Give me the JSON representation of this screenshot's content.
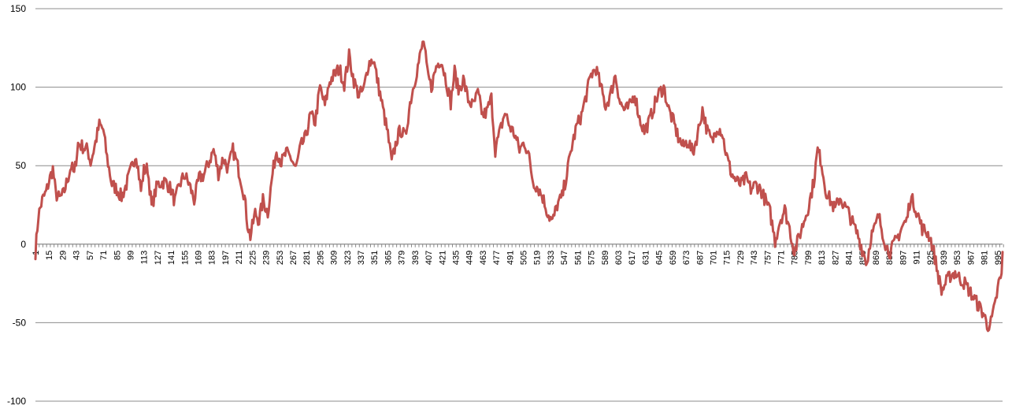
{
  "chart_data": {
    "type": "line",
    "title": "",
    "xlabel": "",
    "ylabel": "",
    "ylim": [
      -100,
      150
    ],
    "xlim": [
      1,
      1000
    ],
    "yticks": [
      -100,
      -50,
      0,
      50,
      100,
      150
    ],
    "xtick_start": 1,
    "xtick_step": 14,
    "xtick_count": 72,
    "grid": "horizontal",
    "legend": "none",
    "line_color": "#c0504d",
    "series": [
      {
        "keypoints": [
          [
            1,
            -5
          ],
          [
            4,
            18
          ],
          [
            8,
            28
          ],
          [
            12,
            33
          ],
          [
            15,
            40
          ],
          [
            19,
            48
          ],
          [
            22,
            32
          ],
          [
            26,
            29
          ],
          [
            30,
            32
          ],
          [
            34,
            41
          ],
          [
            38,
            50
          ],
          [
            41,
            44
          ],
          [
            45,
            64
          ],
          [
            50,
            62
          ],
          [
            55,
            60
          ],
          [
            58,
            52
          ],
          [
            62,
            62
          ],
          [
            67,
            76
          ],
          [
            71,
            73
          ],
          [
            75,
            55
          ],
          [
            80,
            38
          ],
          [
            85,
            35
          ],
          [
            90,
            30
          ],
          [
            95,
            38
          ],
          [
            100,
            48
          ],
          [
            105,
            58
          ],
          [
            110,
            34
          ],
          [
            113,
            47
          ],
          [
            117,
            48
          ],
          [
            121,
            24
          ],
          [
            127,
            38
          ],
          [
            135,
            40
          ],
          [
            141,
            35
          ],
          [
            145,
            27
          ],
          [
            150,
            38
          ],
          [
            155,
            44
          ],
          [
            160,
            38
          ],
          [
            165,
            28
          ],
          [
            170,
            42
          ],
          [
            175,
            44
          ],
          [
            180,
            52
          ],
          [
            185,
            60
          ],
          [
            190,
            45
          ],
          [
            195,
            55
          ],
          [
            200,
            48
          ],
          [
            205,
            60
          ],
          [
            209,
            52
          ],
          [
            213,
            42
          ],
          [
            217,
            30
          ],
          [
            220,
            13
          ],
          [
            223,
            5
          ],
          [
            228,
            20
          ],
          [
            232,
            15
          ],
          [
            236,
            28
          ],
          [
            241,
            20
          ],
          [
            246,
            45
          ],
          [
            250,
            60
          ],
          [
            255,
            52
          ],
          [
            260,
            58
          ],
          [
            265,
            55
          ],
          [
            270,
            48
          ],
          [
            275,
            62
          ],
          [
            280,
            68
          ],
          [
            285,
            82
          ],
          [
            290,
            78
          ],
          [
            295,
            100
          ],
          [
            300,
            88
          ],
          [
            305,
            104
          ],
          [
            310,
            108
          ],
          [
            315,
            112
          ],
          [
            320,
            102
          ],
          [
            325,
            120
          ],
          [
            330,
            104
          ],
          [
            335,
            95
          ],
          [
            340,
            98
          ],
          [
            345,
            115
          ],
          [
            350,
            118
          ],
          [
            355,
            102
          ],
          [
            360,
            86
          ],
          [
            365,
            70
          ],
          [
            369,
            52
          ],
          [
            374,
            66
          ],
          [
            378,
            73
          ],
          [
            383,
            68
          ],
          [
            388,
            90
          ],
          [
            392,
            102
          ],
          [
            397,
            116
          ],
          [
            402,
            130
          ],
          [
            406,
            108
          ],
          [
            410,
            100
          ],
          [
            415,
            113
          ],
          [
            420,
            118
          ],
          [
            425,
            105
          ],
          [
            430,
            90
          ],
          [
            434,
            110
          ],
          [
            438,
            98
          ],
          [
            443,
            105
          ],
          [
            448,
            92
          ],
          [
            453,
            88
          ],
          [
            458,
            96
          ],
          [
            463,
            82
          ],
          [
            467,
            84
          ],
          [
            472,
            93
          ],
          [
            476,
            60
          ],
          [
            481,
            72
          ],
          [
            486,
            84
          ],
          [
            491,
            75
          ],
          [
            496,
            70
          ],
          [
            501,
            60
          ],
          [
            506,
            65
          ],
          [
            510,
            58
          ],
          [
            515,
            40
          ],
          [
            520,
            36
          ],
          [
            525,
            30
          ],
          [
            530,
            20
          ],
          [
            535,
            14
          ],
          [
            540,
            25
          ],
          [
            545,
            30
          ],
          [
            550,
            45
          ],
          [
            555,
            62
          ],
          [
            560,
            75
          ],
          [
            565,
            82
          ],
          [
            570,
            95
          ],
          [
            575,
            108
          ],
          [
            580,
            112
          ],
          [
            585,
            100
          ],
          [
            590,
            88
          ],
          [
            595,
            95
          ],
          [
            600,
            108
          ],
          [
            605,
            90
          ],
          [
            610,
            85
          ],
          [
            615,
            88
          ],
          [
            620,
            96
          ],
          [
            625,
            80
          ],
          [
            630,
            72
          ],
          [
            635,
            78
          ],
          [
            640,
            88
          ],
          [
            645,
            96
          ],
          [
            650,
            100
          ],
          [
            655,
            86
          ],
          [
            660,
            78
          ],
          [
            665,
            68
          ],
          [
            670,
            62
          ],
          [
            675,
            66
          ],
          [
            680,
            58
          ],
          [
            685,
            70
          ],
          [
            690,
            86
          ],
          [
            695,
            72
          ],
          [
            700,
            65
          ],
          [
            705,
            75
          ],
          [
            710,
            72
          ],
          [
            715,
            56
          ],
          [
            720,
            45
          ],
          [
            725,
            40
          ],
          [
            730,
            38
          ],
          [
            735,
            42
          ],
          [
            740,
            35
          ],
          [
            745,
            38
          ],
          [
            750,
            35
          ],
          [
            755,
            28
          ],
          [
            760,
            20
          ],
          [
            765,
            2
          ],
          [
            770,
            15
          ],
          [
            775,
            22
          ],
          [
            780,
            10
          ],
          [
            785,
            -5
          ],
          [
            790,
            5
          ],
          [
            795,
            15
          ],
          [
            800,
            25
          ],
          [
            805,
            40
          ],
          [
            809,
            60
          ],
          [
            813,
            52
          ],
          [
            817,
            35
          ],
          [
            822,
            28
          ],
          [
            827,
            22
          ],
          [
            832,
            30
          ],
          [
            836,
            25
          ],
          [
            841,
            20
          ],
          [
            846,
            12
          ],
          [
            851,
            5
          ],
          [
            855,
            -3
          ],
          [
            860,
            -12
          ],
          [
            864,
            5
          ],
          [
            868,
            10
          ],
          [
            872,
            18
          ],
          [
            876,
            8
          ],
          [
            880,
            -2
          ],
          [
            884,
            -5
          ],
          [
            888,
            0
          ],
          [
            892,
            5
          ],
          [
            897,
            12
          ],
          [
            901,
            15
          ],
          [
            905,
            30
          ],
          [
            909,
            25
          ],
          [
            913,
            18
          ],
          [
            917,
            10
          ],
          [
            921,
            8
          ],
          [
            925,
            5
          ],
          [
            929,
            -5
          ],
          [
            933,
            -18
          ],
          [
            937,
            -30
          ],
          [
            941,
            -25
          ],
          [
            946,
            -20
          ],
          [
            951,
            -18
          ],
          [
            956,
            -22
          ],
          [
            961,
            -25
          ],
          [
            966,
            -30
          ],
          [
            971,
            -35
          ],
          [
            976,
            -40
          ],
          [
            981,
            -45
          ],
          [
            984,
            -52
          ],
          [
            988,
            -50
          ],
          [
            992,
            -40
          ],
          [
            996,
            -25
          ],
          [
            999,
            -20
          ],
          [
            1000,
            -5
          ]
        ]
      }
    ]
  }
}
